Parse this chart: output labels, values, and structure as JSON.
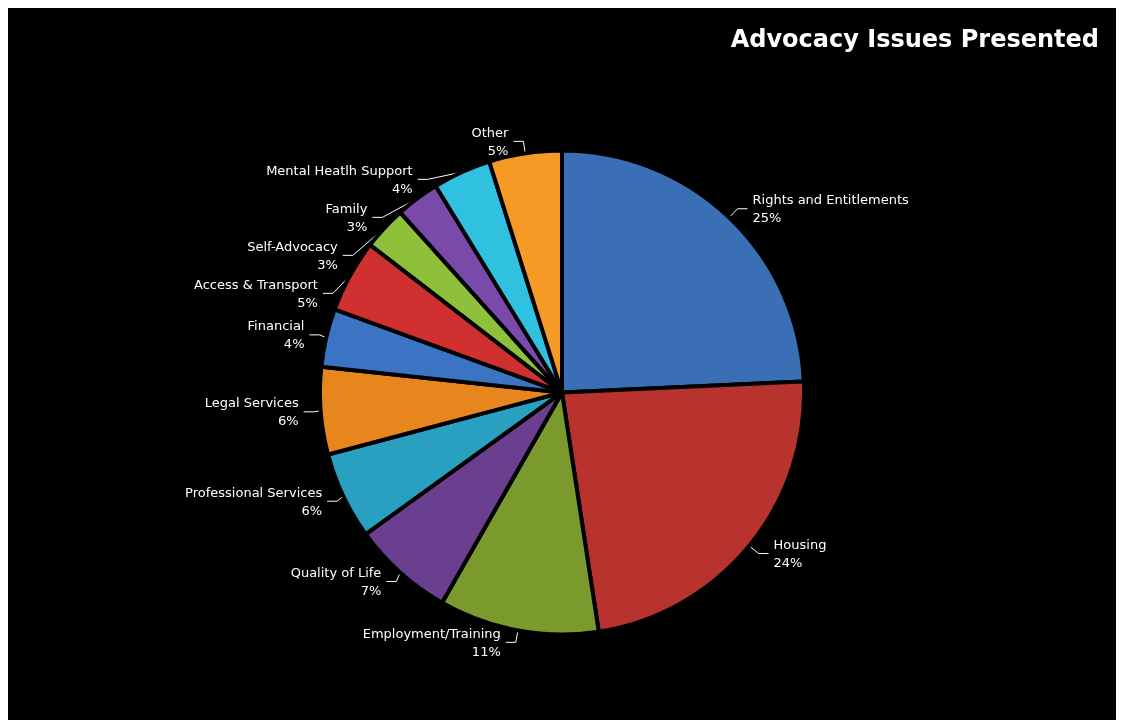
{
  "chart_data": {
    "type": "pie",
    "title": "Advocacy Issues Presented",
    "categories": [
      "Rights and Entitlements",
      "Housing",
      "Employment/Training",
      "Quality of Life",
      "Professional Services",
      "Legal Services",
      "Financial",
      "Access & Transport",
      "Self-Advocacy",
      "Family",
      "Mental Heatlh Support",
      "Other"
    ],
    "values": [
      25,
      24,
      11,
      7,
      6,
      6,
      4,
      5,
      3,
      3,
      4,
      5
    ],
    "value_labels": [
      "25%",
      "24%",
      "11%",
      "7%",
      "6%",
      "6%",
      "4%",
      "5%",
      "3%",
      "3%",
      "4%",
      "5%"
    ],
    "colors": [
      "#3a6fb5",
      "#b8322e",
      "#7a9a2e",
      "#6a3f8f",
      "#2aa0c0",
      "#e8861e",
      "#3a74c2",
      "#d03030",
      "#8fc03c",
      "#7a4aaa",
      "#30c0e0",
      "#f59a24"
    ],
    "legend": false
  }
}
